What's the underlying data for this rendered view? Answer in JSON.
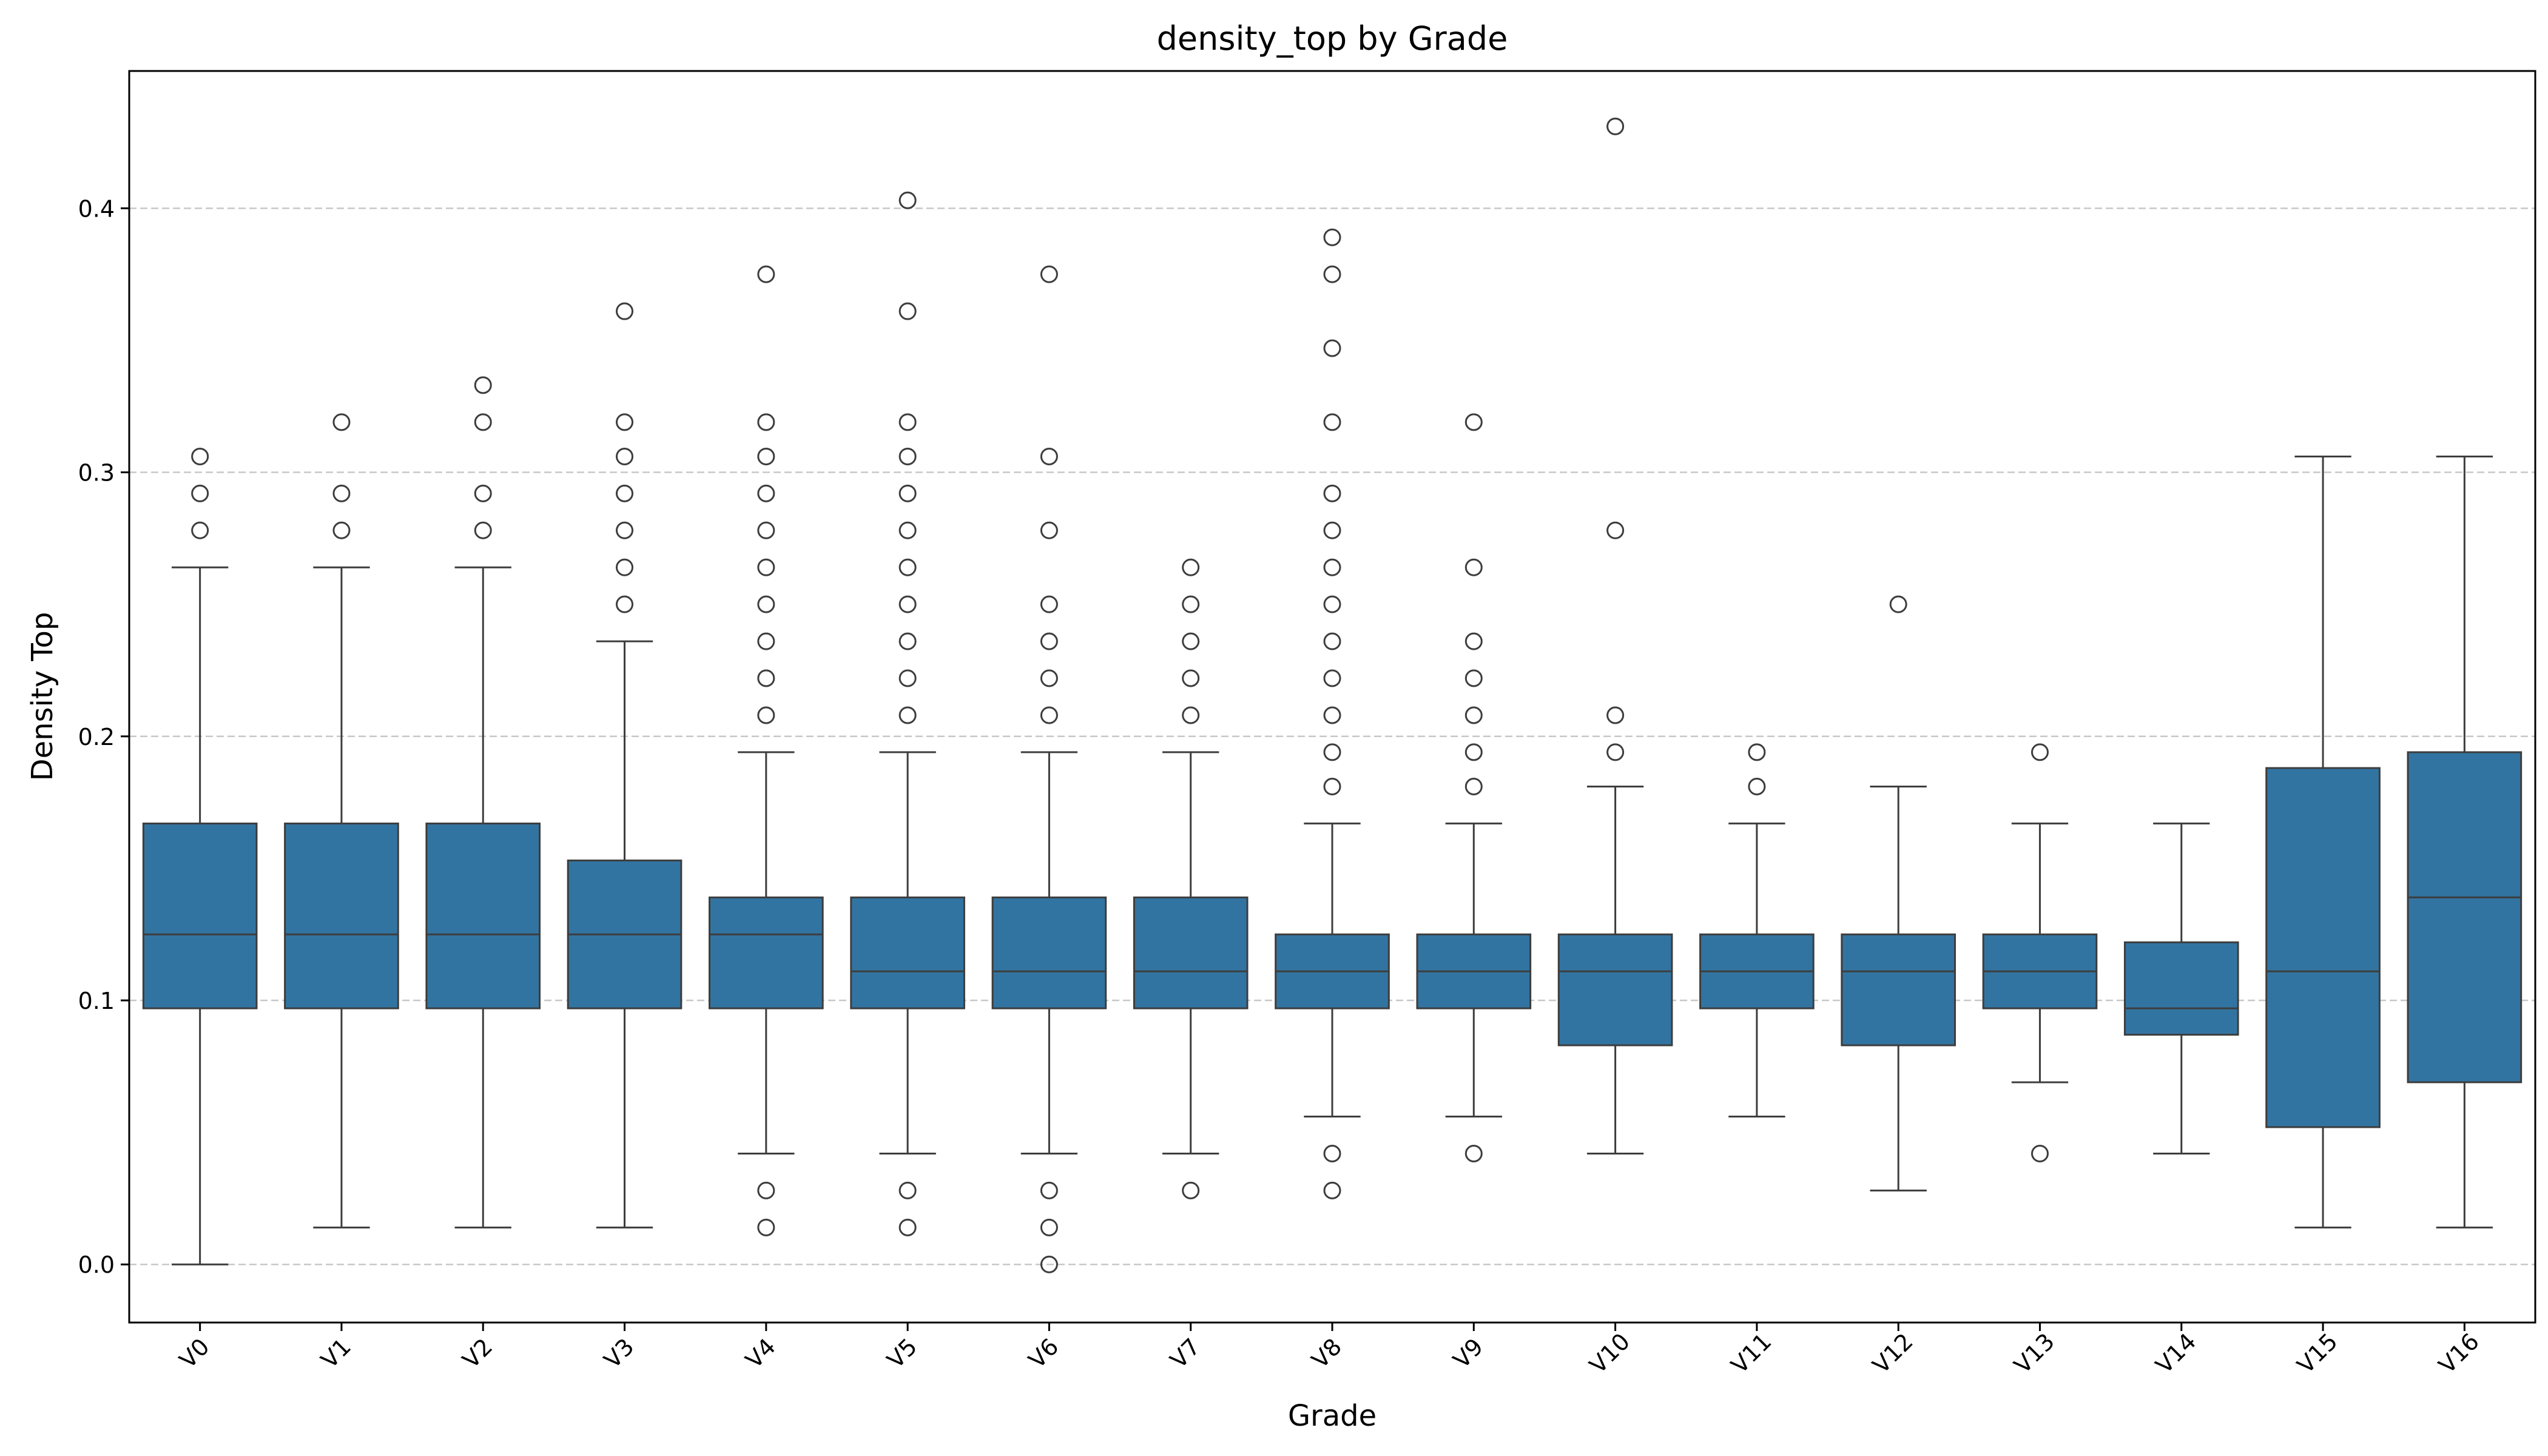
{
  "chart_data": {
    "type": "box",
    "title": "density_top by Grade",
    "xlabel": "Grade",
    "ylabel": "Density Top",
    "ylim": [
      -0.022,
      0.452
    ],
    "yticks": [
      0.0,
      0.1,
      0.2,
      0.3,
      0.4
    ],
    "ytick_labels": [
      "0.0",
      "0.1",
      "0.2",
      "0.3",
      "0.4"
    ],
    "grid": "y-dashed",
    "categories": [
      "V0",
      "V1",
      "V2",
      "V3",
      "V4",
      "V5",
      "V6",
      "V7",
      "V8",
      "V9",
      "V10",
      "V11",
      "V12",
      "V13",
      "V14",
      "V15",
      "V16"
    ],
    "boxes": [
      {
        "q1": 0.097,
        "median": 0.125,
        "q3": 0.167,
        "whisker_low": 0.0,
        "whisker_high": 0.264,
        "outliers": [
          0.278,
          0.292,
          0.306
        ]
      },
      {
        "q1": 0.097,
        "median": 0.125,
        "q3": 0.167,
        "whisker_low": 0.014,
        "whisker_high": 0.264,
        "outliers": [
          0.278,
          0.292,
          0.319
        ]
      },
      {
        "q1": 0.097,
        "median": 0.125,
        "q3": 0.167,
        "whisker_low": 0.014,
        "whisker_high": 0.264,
        "outliers": [
          0.278,
          0.292,
          0.319,
          0.333
        ]
      },
      {
        "q1": 0.097,
        "median": 0.125,
        "q3": 0.153,
        "whisker_low": 0.014,
        "whisker_high": 0.236,
        "outliers": [
          0.25,
          0.264,
          0.278,
          0.292,
          0.306,
          0.319,
          0.361
        ]
      },
      {
        "q1": 0.097,
        "median": 0.125,
        "q3": 0.139,
        "whisker_low": 0.042,
        "whisker_high": 0.194,
        "outliers": [
          0.014,
          0.028,
          0.208,
          0.222,
          0.236,
          0.25,
          0.264,
          0.278,
          0.292,
          0.306,
          0.319,
          0.375
        ]
      },
      {
        "q1": 0.097,
        "median": 0.111,
        "q3": 0.139,
        "whisker_low": 0.042,
        "whisker_high": 0.194,
        "outliers": [
          0.014,
          0.028,
          0.208,
          0.222,
          0.236,
          0.25,
          0.264,
          0.278,
          0.292,
          0.306,
          0.319,
          0.361,
          0.403
        ]
      },
      {
        "q1": 0.097,
        "median": 0.111,
        "q3": 0.139,
        "whisker_low": 0.042,
        "whisker_high": 0.194,
        "outliers": [
          0.0,
          0.014,
          0.028,
          0.208,
          0.222,
          0.236,
          0.25,
          0.278,
          0.306,
          0.375
        ]
      },
      {
        "q1": 0.097,
        "median": 0.111,
        "q3": 0.139,
        "whisker_low": 0.042,
        "whisker_high": 0.194,
        "outliers": [
          0.028,
          0.208,
          0.222,
          0.236,
          0.25,
          0.264
        ]
      },
      {
        "q1": 0.097,
        "median": 0.111,
        "q3": 0.125,
        "whisker_low": 0.056,
        "whisker_high": 0.167,
        "outliers": [
          0.028,
          0.042,
          0.181,
          0.194,
          0.208,
          0.222,
          0.236,
          0.25,
          0.264,
          0.278,
          0.292,
          0.319,
          0.347,
          0.375,
          0.389
        ]
      },
      {
        "q1": 0.097,
        "median": 0.111,
        "q3": 0.125,
        "whisker_low": 0.056,
        "whisker_high": 0.167,
        "outliers": [
          0.042,
          0.181,
          0.194,
          0.208,
          0.222,
          0.236,
          0.264,
          0.319
        ]
      },
      {
        "q1": 0.083,
        "median": 0.111,
        "q3": 0.125,
        "whisker_low": 0.042,
        "whisker_high": 0.181,
        "outliers": [
          0.194,
          0.208,
          0.278,
          0.431
        ]
      },
      {
        "q1": 0.097,
        "median": 0.111,
        "q3": 0.125,
        "whisker_low": 0.056,
        "whisker_high": 0.167,
        "outliers": [
          0.181,
          0.194
        ]
      },
      {
        "q1": 0.083,
        "median": 0.111,
        "q3": 0.125,
        "whisker_low": 0.028,
        "whisker_high": 0.181,
        "outliers": [
          0.25
        ]
      },
      {
        "q1": 0.097,
        "median": 0.111,
        "q3": 0.125,
        "whisker_low": 0.069,
        "whisker_high": 0.167,
        "outliers": [
          0.042,
          0.194
        ]
      },
      {
        "q1": 0.087,
        "median": 0.097,
        "q3": 0.122,
        "whisker_low": 0.042,
        "whisker_high": 0.167,
        "outliers": []
      },
      {
        "q1": 0.052,
        "median": 0.111,
        "q3": 0.188,
        "whisker_low": 0.014,
        "whisker_high": 0.306,
        "outliers": []
      },
      {
        "q1": 0.069,
        "median": 0.139,
        "q3": 0.194,
        "whisker_low": 0.014,
        "whisker_high": 0.306,
        "outliers": []
      }
    ],
    "colors": {
      "box_fill": "#3274a1",
      "line": "#3d3d3d",
      "grid": "#c8c8c8"
    }
  }
}
